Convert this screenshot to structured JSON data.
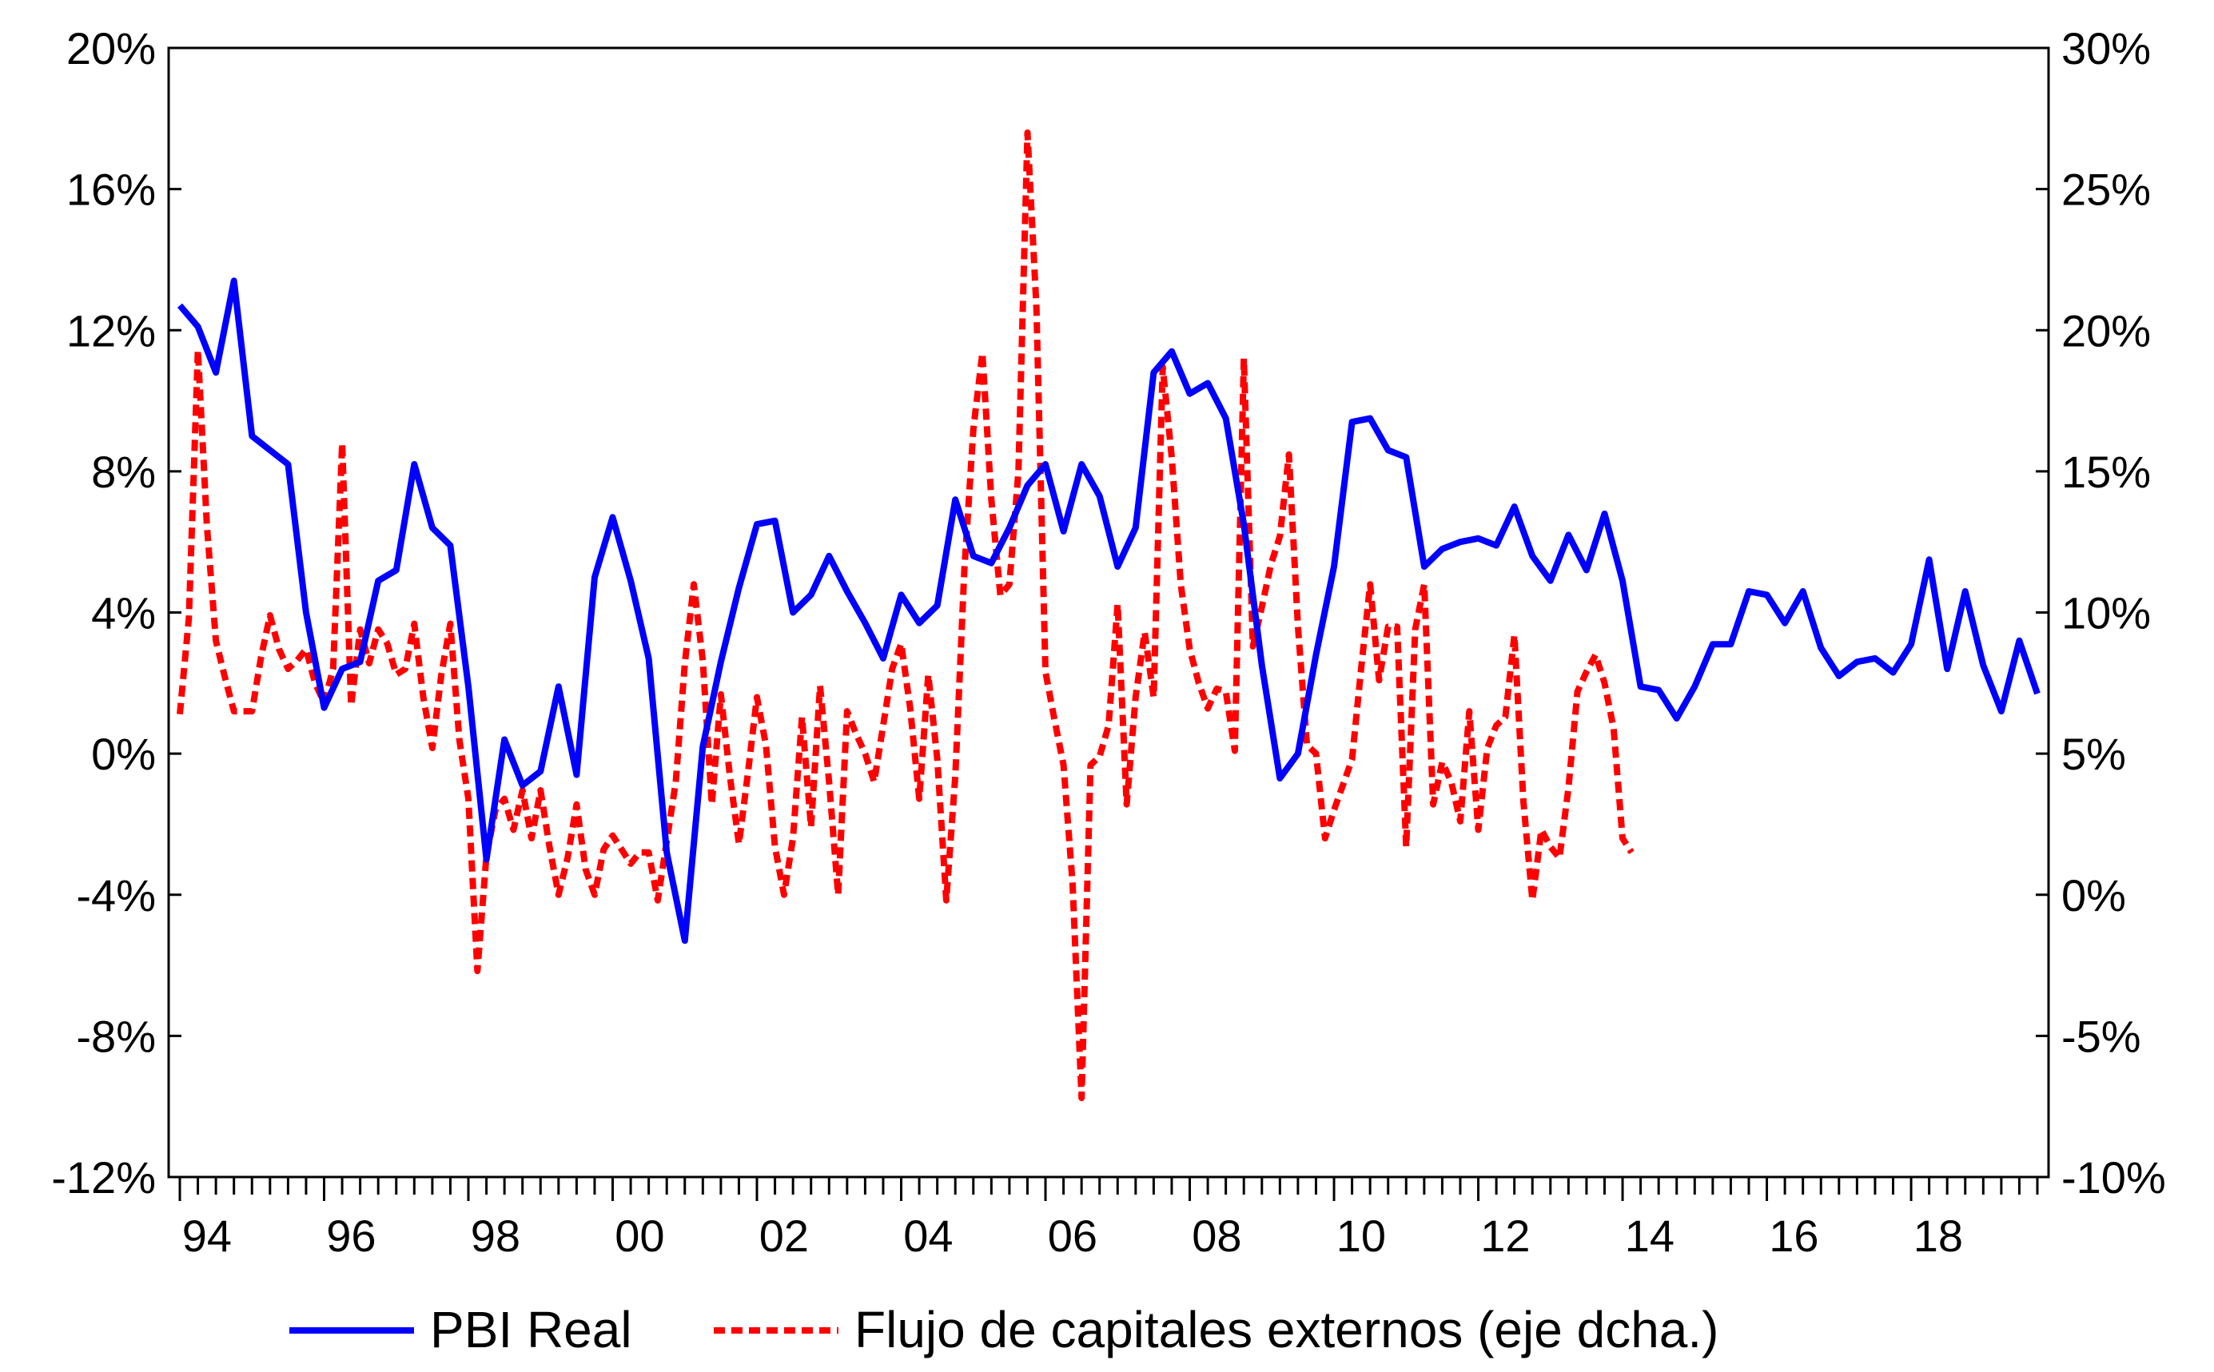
{
  "chart_data": {
    "type": "line",
    "title": "",
    "xlabel": "",
    "ylabel": "",
    "x_tick_labels": [
      "94",
      "96",
      "98",
      "00",
      "02",
      "04",
      "06",
      "08",
      "10",
      "12",
      "14",
      "16",
      "18"
    ],
    "x_tick_years": [
      1994,
      1996,
      1998,
      2000,
      2002,
      2004,
      2006,
      2008,
      2010,
      2012,
      2014,
      2016,
      2018
    ],
    "x_range": [
      1994.0,
      2019.75
    ],
    "left_axis": {
      "ylim": [
        -12,
        20
      ],
      "ticks": [
        -12,
        -8,
        -4,
        0,
        4,
        8,
        12,
        16,
        20
      ],
      "tick_labels": [
        "-12%",
        "-8%",
        "-4%",
        "0%",
        "4%",
        "8%",
        "12%",
        "16%",
        "20%"
      ]
    },
    "right_axis": {
      "ylim": [
        -10,
        30
      ],
      "ticks": [
        -10,
        -5,
        0,
        5,
        10,
        15,
        20,
        25,
        30
      ],
      "tick_labels": [
        "-10%",
        "-5%",
        "0%",
        "5%",
        "10%",
        "15%",
        "20%",
        "25%",
        "30%"
      ]
    },
    "grid": false,
    "legend_position": "bottom",
    "series": [
      {
        "name": "PBI Real",
        "axis": "left",
        "color": "#0000ff",
        "style": "solid",
        "x_start": 1994.0,
        "x_step": 0.25,
        "values": [
          12.7,
          12.1,
          10.8,
          13.4,
          9.0,
          8.6,
          8.2,
          4.0,
          1.3,
          2.4,
          2.6,
          4.9,
          5.2,
          8.2,
          6.4,
          5.9,
          1.9,
          -3.0,
          0.4,
          -0.9,
          -0.5,
          1.9,
          -0.6,
          5.0,
          6.7,
          4.9,
          2.7,
          -2.8,
          -5.3,
          0.2,
          2.6,
          4.7,
          6.5,
          6.6,
          4.0,
          4.5,
          5.6,
          4.6,
          3.7,
          2.7,
          4.5,
          3.7,
          4.2,
          7.2,
          5.6,
          5.4,
          6.4,
          7.6,
          8.2,
          6.3,
          8.2,
          7.3,
          5.3,
          6.4,
          10.8,
          11.4,
          10.2,
          10.5,
          9.5,
          6.5,
          2.5,
          -0.7,
          0.0,
          2.8,
          5.3,
          9.4,
          9.5,
          8.6,
          8.4,
          5.3,
          5.8,
          6.0,
          6.1,
          5.9,
          7.0,
          5.6,
          4.9,
          6.2,
          5.2,
          6.8,
          4.9,
          1.9,
          1.8,
          1.0,
          1.9,
          3.1,
          3.1,
          4.6,
          4.5,
          3.7,
          4.6,
          3.0,
          2.2,
          2.6,
          2.7,
          2.3,
          3.1,
          5.5,
          2.4,
          4.6,
          2.5,
          1.2,
          3.2,
          1.7
        ]
      },
      {
        "name": "Flujo de capitales externos (eje dcha.)",
        "axis": "right",
        "color": "#ff0000",
        "style": "dashed",
        "x_start": 1994.0,
        "x_step": 0.125,
        "values": [
          6.4,
          9.8,
          19.3,
          13.1,
          9.0,
          7.7,
          6.5,
          6.5,
          6.5,
          8.4,
          9.9,
          8.7,
          8.0,
          8.3,
          8.7,
          7.5,
          6.8,
          8.0,
          16.0,
          6.7,
          9.4,
          8.2,
          9.4,
          8.9,
          7.8,
          8.0,
          9.6,
          7.0,
          5.2,
          7.8,
          9.6,
          5.5,
          3.4,
          -2.7,
          1.4,
          3.0,
          3.4,
          2.3,
          3.7,
          2.0,
          3.7,
          1.7,
          0.0,
          1.3,
          3.2,
          0.9,
          0.0,
          1.6,
          2.1,
          1.6,
          1.1,
          1.5,
          1.5,
          -0.2,
          1.9,
          4.0,
          8.2,
          11.0,
          8.3,
          3.2,
          7.1,
          4.2,
          1.8,
          4.3,
          7.0,
          5.3,
          1.7,
          0.0,
          2.0,
          6.3,
          2.4,
          7.4,
          4.0,
          0.0,
          6.5,
          5.7,
          5.0,
          4.0,
          6.0,
          8.0,
          8.9,
          6.6,
          3.4,
          7.8,
          4.8,
          -0.2,
          4.2,
          11.5,
          16.5,
          19.2,
          14.0,
          10.6,
          11.0,
          15.0,
          27.0,
          20.8,
          7.9,
          6.2,
          4.6,
          0.4,
          -7.2,
          4.6,
          4.9,
          6.0,
          10.3,
          3.2,
          7.0,
          9.3,
          7.0,
          18.7,
          15.5,
          11.0,
          8.7,
          7.5,
          6.6,
          7.3,
          7.2,
          5.1,
          19.0,
          8.8,
          10.2,
          11.7,
          12.7,
          15.6,
          9.5,
          5.3,
          5.0,
          2.0,
          3.0,
          3.9,
          4.8,
          8.0,
          11.0,
          7.6,
          9.5,
          9.5,
          1.7,
          9.4,
          11.0,
          3.2,
          4.7,
          4.0,
          2.6,
          6.5,
          2.3,
          5.2,
          6.0,
          6.3,
          9.2,
          3.3,
          -0.2,
          2.3,
          1.7,
          1.3,
          3.8,
          7.2,
          7.9,
          8.5,
          7.5,
          5.9,
          2.0,
          1.5
        ]
      }
    ]
  }
}
